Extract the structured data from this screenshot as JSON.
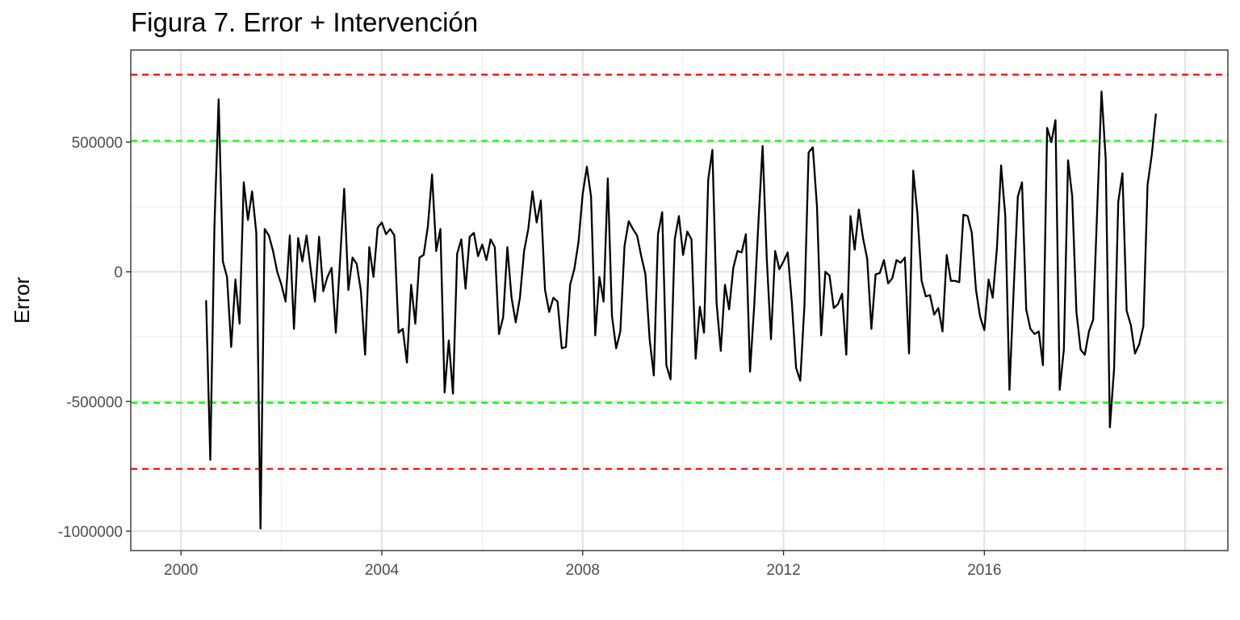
{
  "chart_data": {
    "type": "line",
    "title": "Figura 7. Error + Intervención",
    "xlabel": "",
    "ylabel": "Error",
    "xlim": [
      1999.0,
      2020.85
    ],
    "ylim": [
      -1075000,
      855000
    ],
    "x_ticks": [
      2000,
      2004,
      2008,
      2012,
      2016
    ],
    "x_tick_labels": [
      "2000",
      "2004",
      "2008",
      "2012",
      "2016"
    ],
    "y_ticks": [
      500000,
      0,
      -500000,
      -1000000
    ],
    "y_tick_labels": [
      "500000",
      "0",
      "-500000",
      "-1000000"
    ],
    "grid": true,
    "series": [
      {
        "color": "#000000",
        "x_start": 2000.5,
        "x_step": 0.08333333,
        "values": [
          -110000,
          -725000,
          180000,
          665000,
          40000,
          -20000,
          -290000,
          -30000,
          -200000,
          345000,
          200000,
          310000,
          150000,
          -990000,
          165000,
          140000,
          80000,
          0,
          -50000,
          -115000,
          140000,
          -220000,
          130000,
          40000,
          140000,
          10000,
          -115000,
          135000,
          -75000,
          -20000,
          15000,
          -235000,
          40000,
          320000,
          -70000,
          55000,
          30000,
          -75000,
          -320000,
          95000,
          -20000,
          170000,
          190000,
          145000,
          165000,
          140000,
          -235000,
          -220000,
          -350000,
          -50000,
          -200000,
          55000,
          65000,
          175000,
          375000,
          80000,
          165000,
          -465000,
          -265000,
          -470000,
          70000,
          125000,
          -65000,
          135000,
          150000,
          60000,
          105000,
          45000,
          125000,
          95000,
          -240000,
          -175000,
          95000,
          -100000,
          -195000,
          -100000,
          80000,
          165000,
          310000,
          190000,
          275000,
          -70000,
          -155000,
          -100000,
          -115000,
          -295000,
          -290000,
          -50000,
          10000,
          115000,
          300000,
          405000,
          290000,
          -245000,
          -20000,
          -115000,
          360000,
          -170000,
          -295000,
          -230000,
          100000,
          195000,
          165000,
          140000,
          60000,
          -10000,
          -260000,
          -400000,
          145000,
          230000,
          -360000,
          -415000,
          125000,
          215000,
          65000,
          155000,
          125000,
          -335000,
          -135000,
          -235000,
          355000,
          470000,
          -120000,
          -305000,
          -50000,
          -145000,
          15000,
          80000,
          75000,
          145000,
          -385000,
          -130000,
          190000,
          485000,
          50000,
          -260000,
          80000,
          10000,
          40000,
          75000,
          -120000,
          -370000,
          -420000,
          -130000,
          460000,
          480000,
          250000,
          -245000,
          0,
          -15000,
          -140000,
          -125000,
          -85000,
          -320000,
          215000,
          85000,
          240000,
          130000,
          50000,
          -220000,
          -10000,
          -5000,
          45000,
          -45000,
          -25000,
          45000,
          35000,
          55000,
          -315000,
          390000,
          225000,
          -35000,
          -95000,
          -90000,
          -165000,
          -140000,
          -230000,
          65000,
          -35000,
          -35000,
          -40000,
          220000,
          215000,
          150000,
          -70000,
          -175000,
          -225000,
          -30000,
          -100000,
          90000,
          410000,
          215000,
          -455000,
          -70000,
          290000,
          345000,
          -145000,
          -220000,
          -240000,
          -230000,
          -360000,
          555000,
          500000,
          585000,
          -455000,
          -300000,
          430000,
          290000,
          -155000,
          -300000,
          -320000,
          -230000,
          -185000,
          255000,
          695000,
          435000,
          -600000,
          -375000,
          270000,
          380000,
          -150000,
          -205000,
          -315000,
          -280000,
          -210000,
          335000,
          450000,
          610000
        ]
      }
    ],
    "reference_lines": [
      {
        "y": 760000,
        "color": "#ff0000",
        "style": "dashed"
      },
      {
        "y": 505000,
        "color": "#00ff00",
        "style": "dashed"
      },
      {
        "y": -505000,
        "color": "#00ff00",
        "style": "dashed"
      },
      {
        "y": -760000,
        "color": "#ff0000",
        "style": "dashed"
      }
    ]
  }
}
